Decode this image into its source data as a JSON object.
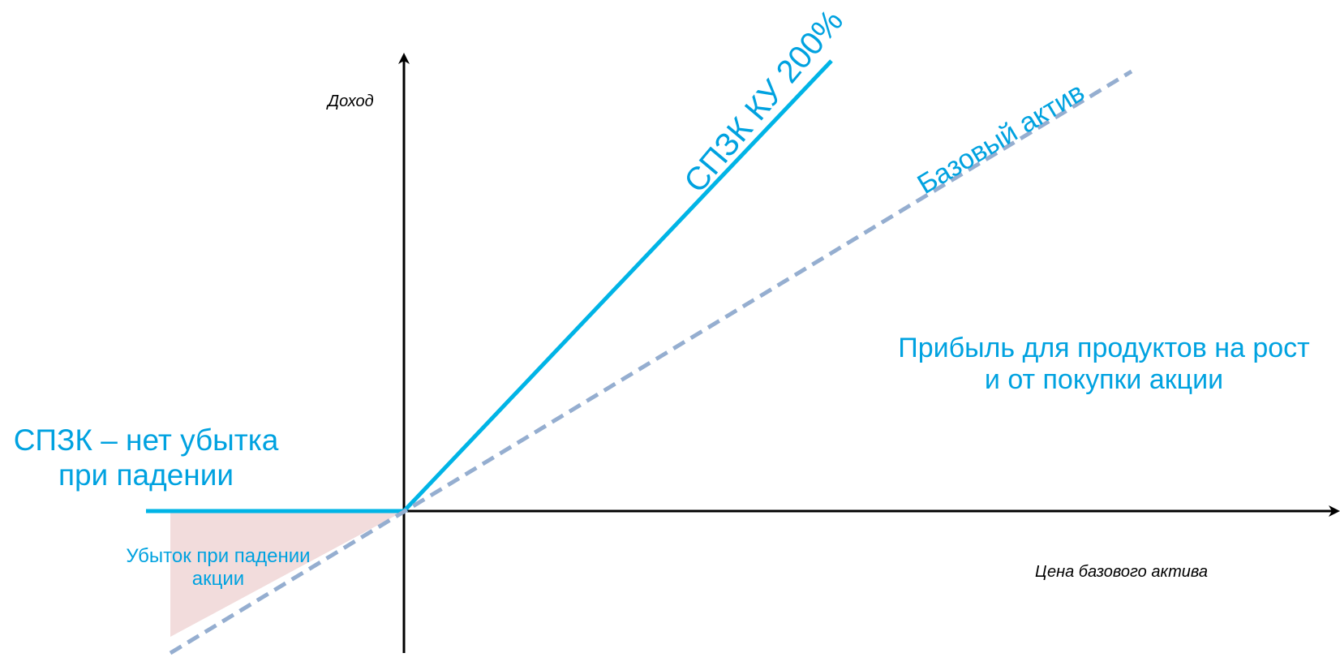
{
  "axes": {
    "y_label": "Доход",
    "x_label": "Цена базового актива"
  },
  "lines": {
    "spzk_label": "СПЗК КУ 200%",
    "base_label": "Базовый актив"
  },
  "annotations": {
    "profit_line1": "Прибыль для продуктов на рост",
    "profit_line2": "и от покупки акции",
    "no_loss_line1": "СПЗК – нет убытка",
    "no_loss_line2": "при падении",
    "loss_line1": "Убыток при падении",
    "loss_line2": "акции"
  },
  "colors": {
    "spzk": "#00b4e6",
    "base": "#95aed0",
    "loss_fill": "#f2dcdc",
    "axis": "#000000",
    "text_accent": "#00a2e0"
  },
  "payoff": {
    "spzk_participation": 2.0,
    "base_participation": 1.0,
    "spzk_downside": 0
  }
}
